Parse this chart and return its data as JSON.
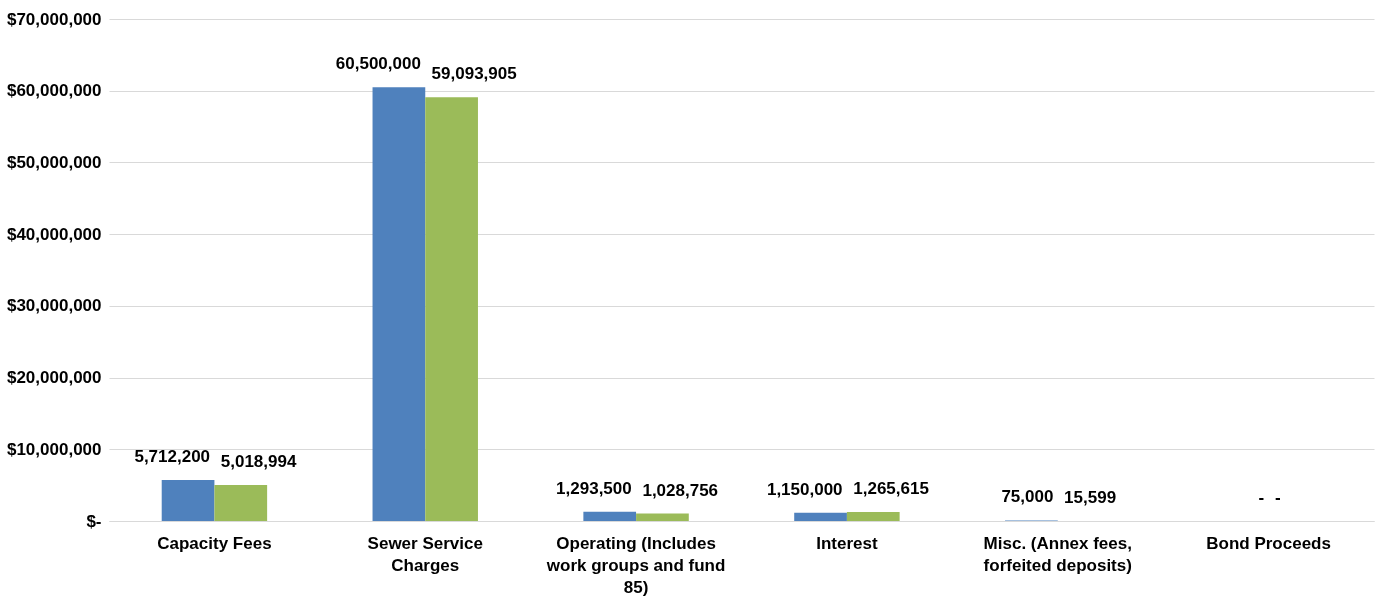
{
  "chart_data": {
    "type": "bar",
    "categories": [
      "Capacity Fees",
      "Sewer Service Charges",
      "Operating (Includes work groups and fund 85)",
      "Interest",
      "Misc. (Annex fees, forfeited deposits)",
      "Bond Proceeds"
    ],
    "series": [
      {
        "color": "#4f81bd",
        "values": [
          5712200,
          60500000,
          1293500,
          1150000,
          75000,
          0
        ],
        "value_labels": [
          "5,712,200",
          "60,500,000",
          "1,293,500",
          "1,150,000",
          "75,000",
          "-"
        ]
      },
      {
        "color": "#9bbb59",
        "values": [
          5018994,
          59093905,
          1028756,
          1265615,
          15599,
          0
        ],
        "value_labels": [
          "5,018,994",
          "59,093,905",
          "1,028,756",
          "1,265,615",
          "15,599",
          "-"
        ]
      }
    ],
    "ylim": [
      0,
      70000000
    ],
    "yticks": [
      {
        "value": 0,
        "label": "$-"
      },
      {
        "value": 10000000,
        "label": "$10,000,000"
      },
      {
        "value": 20000000,
        "label": "$20,000,000"
      },
      {
        "value": 30000000,
        "label": "$30,000,000"
      },
      {
        "value": 40000000,
        "label": "$40,000,000"
      },
      {
        "value": 50000000,
        "label": "$50,000,000"
      },
      {
        "value": 60000000,
        "label": "$60,000,000"
      },
      {
        "value": 70000000,
        "label": "$70,000,000"
      }
    ],
    "grid": "y"
  }
}
